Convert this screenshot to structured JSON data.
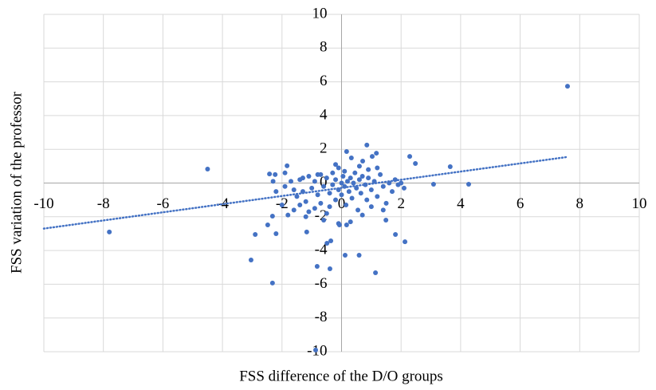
{
  "chart_data": {
    "type": "scatter",
    "xlabel": "FSS difference of the D/O groups",
    "ylabel": "FSS variation of the professor",
    "color": "#4472c4",
    "xlim": [
      -10,
      10
    ],
    "xticks": [
      -10,
      -8,
      -6,
      -4,
      -2,
      0,
      2,
      4,
      6,
      8,
      10
    ],
    "ylim": [
      -10,
      10
    ],
    "yticks": [
      -10,
      -8,
      -6,
      -4,
      -2,
      0,
      2,
      4,
      6,
      8,
      10
    ],
    "grid": true,
    "x": [
      7.59,
      -4.5,
      -7.8,
      4.27,
      3.09,
      3.65,
      2.29,
      2.48,
      2.13,
      1.81,
      1.49,
      1.14,
      0.59,
      0.12,
      -0.39,
      -0.82,
      -0.87,
      -2.32,
      -3.04,
      -2.9,
      -2.48,
      -2.2,
      -2.32,
      -1.83,
      -2.42,
      -2.23,
      -1.17,
      -0.49,
      -0.36,
      -0.07,
      0.17,
      0.17,
      0.85,
      1.17,
      1.03,
      0.33,
      0.71,
      -1.9,
      -1.7,
      -1.6,
      -1.5,
      -1.4,
      -1.3,
      -1.2,
      -1.1,
      -1.0,
      -0.9,
      -0.9,
      -0.8,
      -0.7,
      -0.7,
      -0.6,
      -0.5,
      -0.5,
      -0.4,
      -0.3,
      -0.3,
      -0.2,
      -0.2,
      -0.1,
      -0.1,
      0,
      0,
      0.05,
      0.1,
      0.1,
      0.15,
      0.2,
      0.25,
      0.3,
      0.35,
      0.4,
      0.45,
      0.5,
      0.55,
      0.6,
      0.65,
      0.7,
      0.8,
      0.85,
      0.9,
      1.0,
      1.1,
      1.2,
      1.3,
      1.4,
      1.5,
      1.6,
      1.7,
      1.8,
      1.9,
      2.0,
      -2.2,
      -2.0,
      -1.8,
      -1.6,
      -1.3,
      -1.1,
      -0.8,
      -0.6,
      -0.4,
      -2.3,
      0.3,
      0.7,
      1.0,
      0.9,
      -0.2,
      -1.2,
      -0.1,
      0.6,
      1.2,
      1.4,
      2.1,
      -1.4,
      -1.9
    ],
    "values": [
      5.74,
      0.83,
      -2.9,
      -0.07,
      -0.07,
      0.97,
      1.58,
      1.16,
      -3.48,
      -3.05,
      -2.2,
      -5.32,
      -4.28,
      -4.28,
      -5.08,
      -4.94,
      -9.9,
      -5.93,
      -4.56,
      -3.05,
      -2.48,
      -3.0,
      -1.96,
      1.02,
      0.54,
      0.5,
      -2.9,
      -3.57,
      -3.43,
      -2.48,
      -2.48,
      1.87,
      2.25,
      1.77,
      1.58,
      1.49,
      1.3,
      -0.2,
      0.1,
      -0.4,
      -0.8,
      0.2,
      -0.5,
      -1.1,
      0.4,
      -0.3,
      -1.5,
      0.1,
      -0.7,
      0.5,
      -1.2,
      -0.2,
      0.3,
      -1.8,
      -0.6,
      0.6,
      -0.1,
      -1.0,
      0.2,
      -0.4,
      0.9,
      0,
      -0.7,
      0.4,
      -0.2,
      0.7,
      -1.3,
      0.1,
      -0.5,
      0.3,
      -0.9,
      0.0,
      0.6,
      -0.3,
      -1.6,
      0.2,
      -0.6,
      0.4,
      -0.1,
      -1.0,
      0.3,
      -0.4,
      0.1,
      -0.8,
      0.5,
      -0.2,
      -1.2,
      0.0,
      -0.5,
      0.2,
      -0.1,
      0.0,
      -0.5,
      -1.3,
      -1.9,
      -1.6,
      0.3,
      -1.7,
      0.5,
      -2.2,
      -1.4,
      0.1,
      -2.3,
      -1.9,
      -1.4,
      0.8,
      1.1,
      -2.0,
      -2.4,
      1.0,
      0.9,
      -1.6,
      -0.3,
      -1.3,
      0.6
    ],
    "trendline": {
      "x": [
        -10,
        7.6
      ],
      "values": [
        -2.7,
        1.55
      ]
    }
  }
}
